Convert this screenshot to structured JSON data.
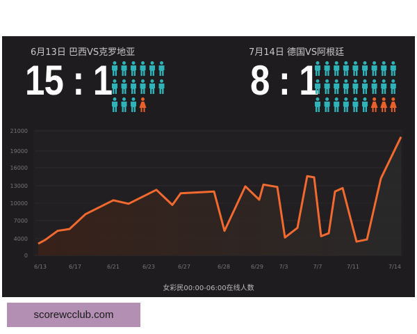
{
  "matches": [
    {
      "title": "6月13日 巴西VS克罗地亚",
      "score": "15 : 1",
      "male_icons": 15,
      "female_icons": 1
    },
    {
      "title": "7月14日  德国VS阿根廷",
      "score": "8 : 1",
      "male_icons": 24,
      "female_icons": 3
    }
  ],
  "colors": {
    "male": "#2fb3b8",
    "female": "#e8612a",
    "line": "#f26a30",
    "background": "#1e1c1e",
    "badge": "#b48fb4"
  },
  "chart_data": {
    "type": "area",
    "title": "",
    "xlabel": "女彩民00:00-06:00在线人数",
    "ylabel": "",
    "y_ticks": [
      "0",
      "4000",
      "7000",
      "10000",
      "13000",
      "16000",
      "19000",
      "21000"
    ],
    "x_ticks": [
      "6/13",
      "6/17",
      "6/21",
      "6/23",
      "6/27",
      "6/28",
      "6/29",
      "7/3",
      "7/7",
      "7/11",
      "7/14"
    ],
    "grid": true,
    "series": [
      {
        "values": [
          2800,
          3700,
          5300,
          5600,
          8100,
          8700,
          10500,
          9900,
          12300,
          9700,
          11700,
          12000,
          5300,
          12900,
          10600,
          13200,
          12800,
          4200,
          5800,
          14600,
          14400,
          4400,
          4900,
          12000,
          12600,
          3300,
          3800,
          14200,
          20400
        ]
      }
    ]
  },
  "watermark": "scorewcclub.com"
}
